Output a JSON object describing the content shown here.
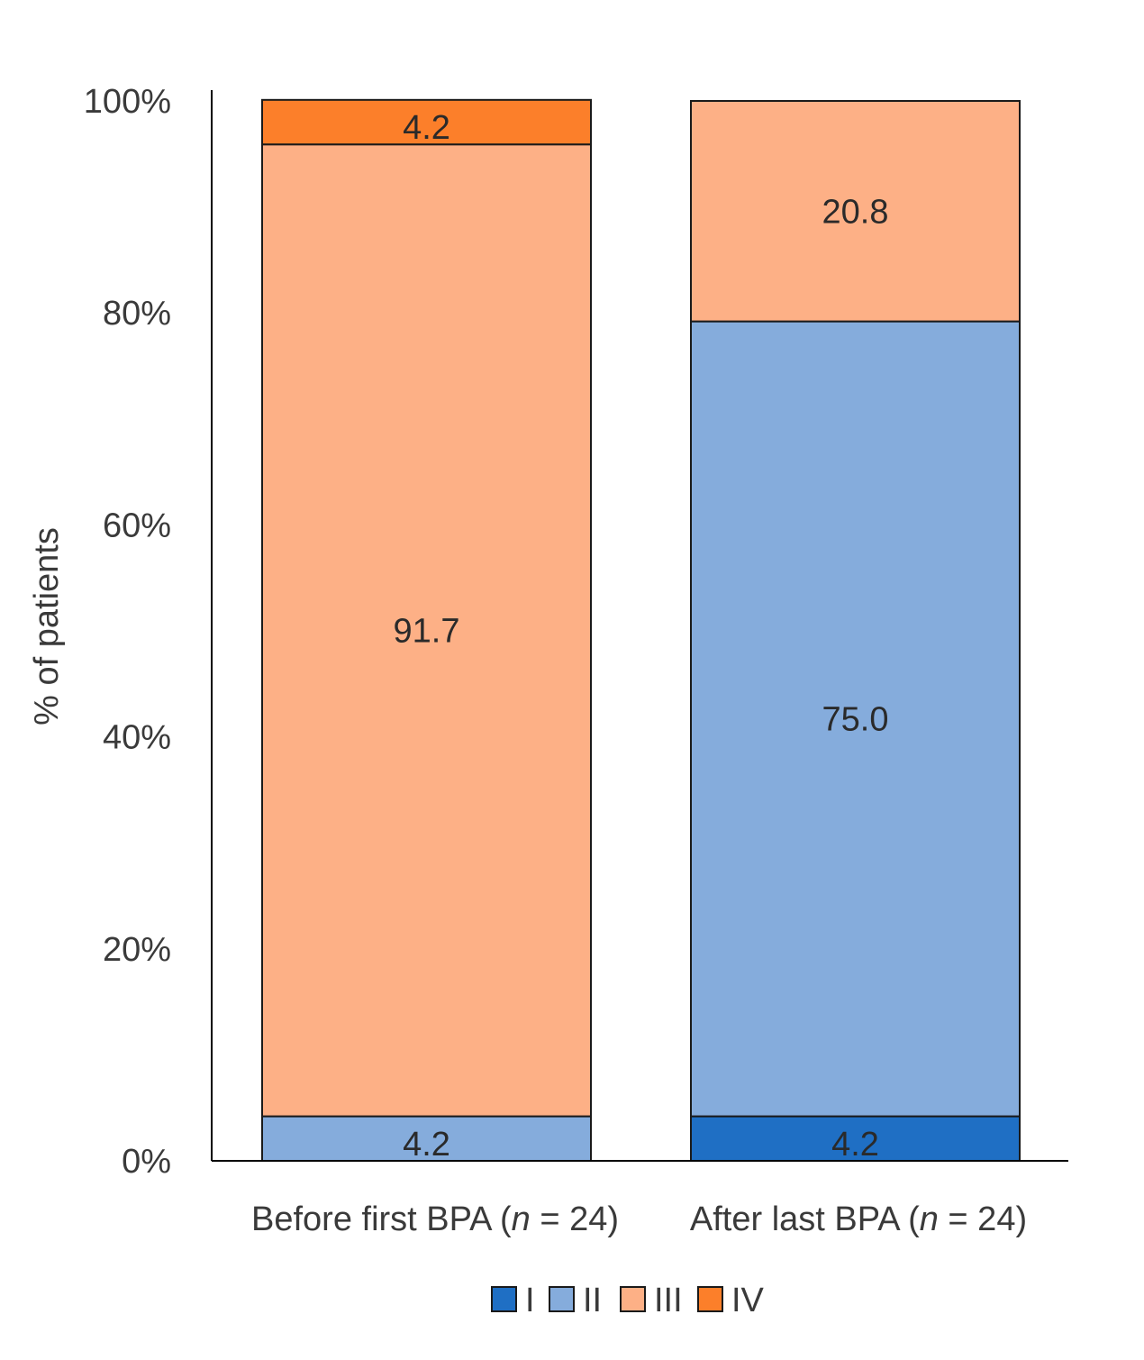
{
  "chart_data": {
    "type": "bar",
    "stacked": true,
    "title": "",
    "xlabel": "",
    "ylabel": "% of patients",
    "ylim": [
      0,
      100
    ],
    "y_ticks": [
      "0%",
      "20%",
      "40%",
      "60%",
      "80%",
      "100%"
    ],
    "y_tick_values": [
      0,
      20,
      40,
      60,
      80,
      100
    ],
    "grid": false,
    "legend_position": "bottom-center",
    "categories": [
      {
        "prefix": "Before first BPA (",
        "n_var": "n",
        "suffix": " = 24)"
      },
      {
        "prefix": "After last BPA (",
        "n_var": "n",
        "suffix": " = 24)"
      }
    ],
    "series": [
      {
        "name": "I",
        "color": "#1f6fc4",
        "values": [
          0,
          4.2
        ],
        "labels": [
          "",
          "4.2"
        ]
      },
      {
        "name": "II",
        "color": "#85acdc",
        "values": [
          4.2,
          75.0
        ],
        "labels": [
          "4.2",
          "75.0"
        ]
      },
      {
        "name": "III",
        "color": "#fdb086",
        "values": [
          91.7,
          20.8
        ],
        "labels": [
          "91.7",
          "20.8"
        ]
      },
      {
        "name": "IV",
        "color": "#fc7f2a",
        "values": [
          4.2,
          0
        ],
        "labels": [
          "4.2",
          ""
        ]
      }
    ]
  }
}
